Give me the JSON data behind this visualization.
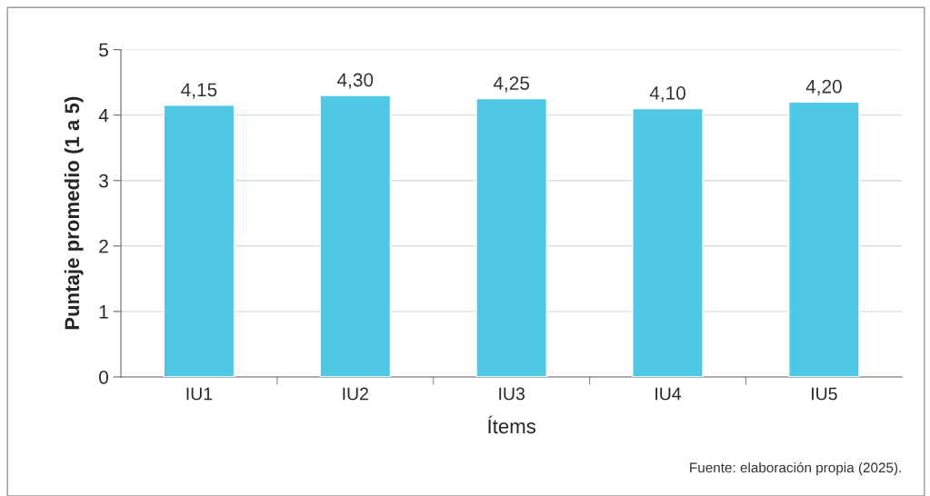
{
  "chart_data": {
    "type": "bar",
    "xlabel": "Ítems",
    "ylabel": "Puntaje promedio (1 a 5)",
    "categories": [
      "IU1",
      "IU2",
      "IU3",
      "IU4",
      "IU5"
    ],
    "values": [
      4.15,
      4.3,
      4.25,
      4.1,
      4.2
    ],
    "value_labels": [
      "4,15",
      "4,30",
      "4,25",
      "4,10",
      "4,20"
    ],
    "color": "#4fc8e4",
    "ylim": [
      0,
      5
    ],
    "yticks": [
      0,
      1,
      2,
      3,
      4,
      5
    ],
    "grid": "y",
    "annotations": [
      "Fuente: elaboración propia (2025)."
    ]
  }
}
